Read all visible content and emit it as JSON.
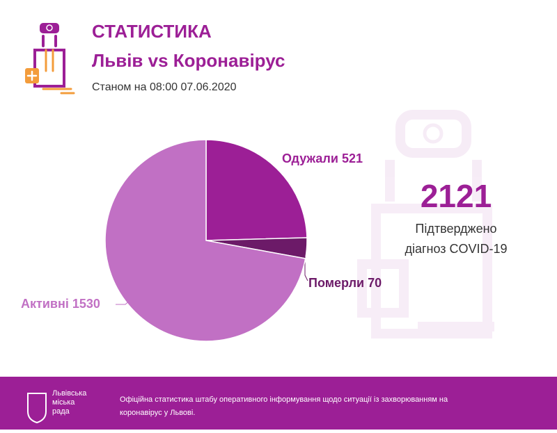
{
  "header": {
    "title": "СТАТИСТИКА",
    "subtitle": "Львів vs Коронавірус",
    "date": "Станом на 08:00 07.06.2020"
  },
  "chart_data": {
    "type": "pie",
    "categories": [
      "Одужали",
      "Померли",
      "Активні"
    ],
    "values": [
      521,
      70,
      1530
    ],
    "colors": [
      "#9c1f96",
      "#6c1a68",
      "#c170c4"
    ]
  },
  "summary": {
    "value": 2121,
    "caption": [
      "Підтверджено",
      "діагноз COVID-19"
    ]
  },
  "footer": {
    "logo": [
      "Львівська",
      "міська",
      "рада"
    ],
    "text": [
      "Офіційна статистика штабу оперативного інформування щодо ситуації із захворюванням на",
      "коронавірус у Львові."
    ]
  }
}
